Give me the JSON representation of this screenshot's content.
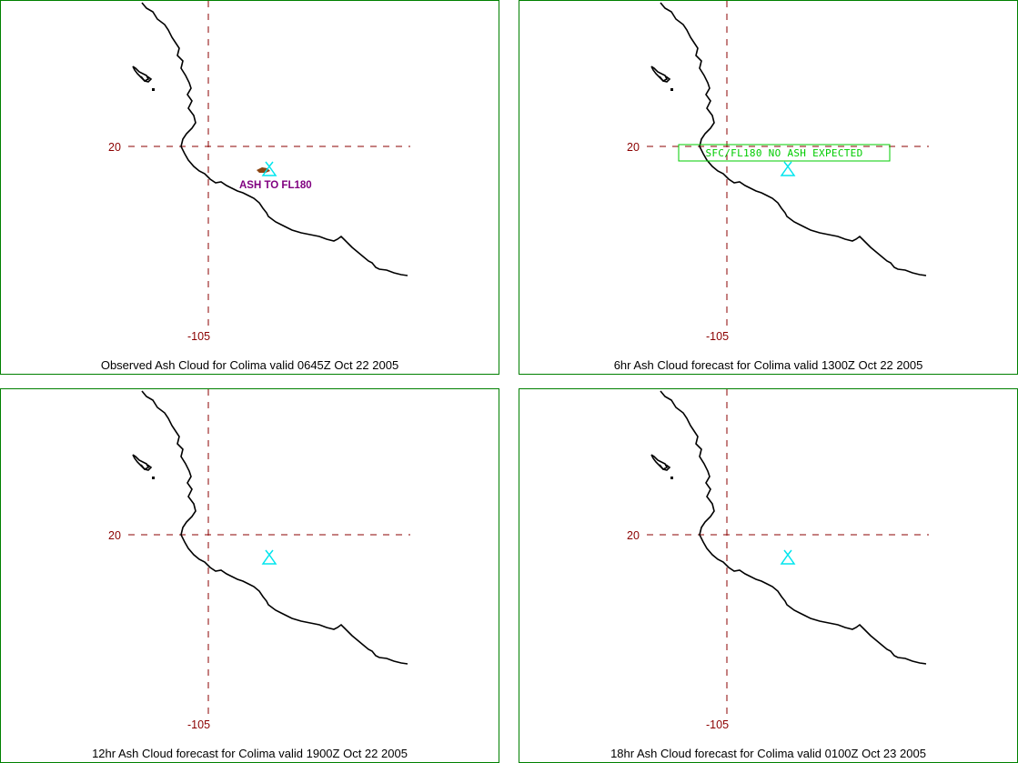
{
  "grid": {
    "lat_label": "20",
    "lon_label": "-105",
    "color": "#8b0000"
  },
  "colors": {
    "border": "#008000",
    "volcano": "#00e5ee",
    "ash": "#8b4513",
    "ash_text": "#800080",
    "no_ash_text": "#00cc00"
  },
  "icons": {
    "volcano": "volcano-icon"
  },
  "panels": [
    {
      "caption": "Observed Ash Cloud for Colima valid 0645Z Oct 22 2005",
      "annotation": "ASH TO FL180",
      "annotation_type": "ash",
      "show_ash": true
    },
    {
      "caption": "6hr Ash Cloud forecast for Colima valid 1300Z Oct 22 2005",
      "annotation": "SFC/FL180 NO ASH EXPECTED",
      "annotation_type": "boxed",
      "show_ash": false
    },
    {
      "caption": "12hr Ash Cloud forecast for Colima valid 1900Z Oct 22 2005",
      "annotation": "",
      "annotation_type": "none",
      "show_ash": false
    },
    {
      "caption": "18hr Ash Cloud forecast for Colima valid 0100Z Oct 23 2005",
      "annotation": "",
      "annotation_type": "none",
      "show_ash": false
    }
  ]
}
